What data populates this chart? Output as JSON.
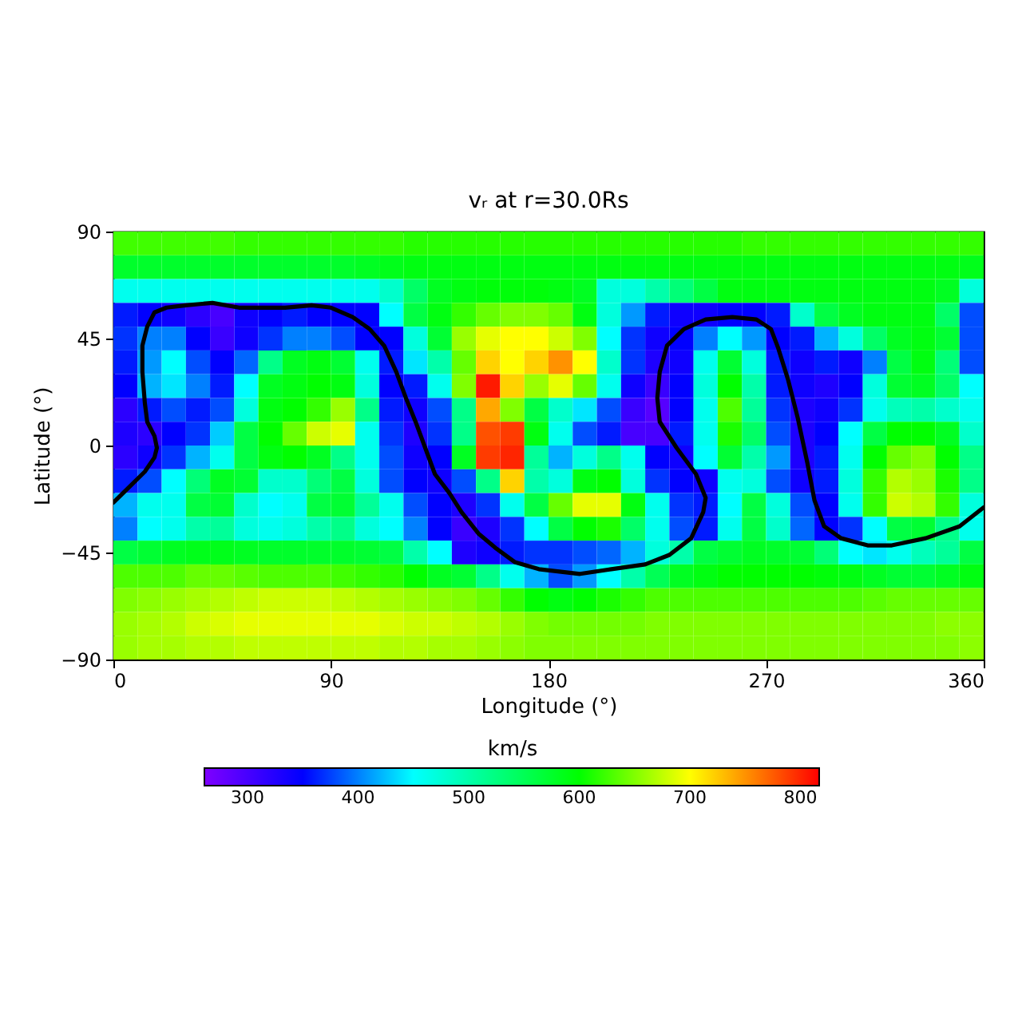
{
  "chart_data": {
    "type": "heatmap",
    "title": "vᵣ at r=30.0Rs",
    "xlabel": "Longitude (°)",
    "ylabel": "Latitude (°)",
    "clabel": "km/s",
    "xlim": [
      0,
      360
    ],
    "xticks": [
      0,
      90,
      180,
      270,
      360
    ],
    "ylim": [
      -90,
      90
    ],
    "yticks": [
      -90,
      -45,
      0,
      45,
      90
    ],
    "clim": [
      261,
      817
    ],
    "cticks": [
      300,
      400,
      500,
      600,
      700,
      800
    ],
    "x": [
      5,
      15,
      25,
      35,
      45,
      55,
      65,
      75,
      85,
      95,
      105,
      115,
      125,
      135,
      145,
      155,
      165,
      175,
      185,
      195,
      205,
      215,
      225,
      235,
      245,
      255,
      265,
      275,
      285,
      295,
      305,
      315,
      325,
      335,
      345,
      355
    ],
    "y": [
      85,
      75,
      65,
      55,
      45,
      35,
      25,
      15,
      5,
      -5,
      -15,
      -25,
      -35,
      -45,
      -55,
      -65,
      -75,
      -85
    ],
    "cells": [
      [
        625,
        625,
        625,
        625,
        625,
        620,
        620,
        620,
        620,
        620,
        620,
        620,
        615,
        615,
        615,
        615,
        615,
        615,
        615,
        615,
        615,
        615,
        615,
        615,
        615,
        615,
        620,
        620,
        620,
        620,
        620,
        620,
        620,
        620,
        620,
        620
      ],
      [
        575,
        575,
        575,
        575,
        575,
        575,
        575,
        575,
        575,
        575,
        580,
        585,
        590,
        590,
        590,
        590,
        590,
        590,
        590,
        590,
        590,
        590,
        590,
        590,
        590,
        590,
        590,
        590,
        590,
        590,
        590,
        590,
        590,
        590,
        590,
        585
      ],
      [
        460,
        460,
        460,
        460,
        460,
        460,
        460,
        460,
        460,
        460,
        460,
        480,
        540,
        580,
        590,
        595,
        595,
        595,
        590,
        580,
        470,
        470,
        500,
        530,
        560,
        590,
        590,
        590,
        590,
        590,
        590,
        590,
        590,
        590,
        580,
        470
      ],
      [
        360,
        350,
        340,
        320,
        300,
        340,
        350,
        360,
        350,
        350,
        350,
        450,
        560,
        590,
        620,
        640,
        650,
        650,
        640,
        590,
        470,
        410,
        360,
        340,
        340,
        350,
        350,
        360,
        480,
        560,
        580,
        590,
        590,
        590,
        540,
        380
      ],
      [
        370,
        400,
        400,
        350,
        310,
        340,
        370,
        400,
        400,
        380,
        350,
        350,
        470,
        570,
        660,
        690,
        700,
        700,
        680,
        650,
        450,
        370,
        340,
        350,
        400,
        450,
        410,
        350,
        360,
        420,
        470,
        540,
        580,
        590,
        570,
        380
      ],
      [
        360,
        410,
        450,
        380,
        350,
        390,
        520,
        580,
        590,
        570,
        460,
        360,
        440,
        500,
        640,
        720,
        700,
        720,
        750,
        700,
        480,
        370,
        330,
        340,
        460,
        570,
        470,
        360,
        340,
        360,
        340,
        400,
        560,
        590,
        530,
        380
      ],
      [
        350,
        420,
        440,
        400,
        360,
        450,
        580,
        590,
        600,
        590,
        470,
        350,
        360,
        460,
        650,
        805,
        720,
        660,
        690,
        640,
        460,
        340,
        310,
        350,
        470,
        600,
        500,
        360,
        340,
        330,
        350,
        470,
        570,
        580,
        540,
        450
      ],
      [
        320,
        360,
        380,
        360,
        380,
        470,
        590,
        600,
        620,
        660,
        520,
        360,
        340,
        380,
        520,
        740,
        650,
        560,
        480,
        440,
        380,
        310,
        290,
        350,
        460,
        630,
        510,
        370,
        330,
        340,
        370,
        460,
        490,
        500,
        480,
        460
      ],
      [
        330,
        320,
        350,
        370,
        430,
        560,
        600,
        640,
        680,
        690,
        460,
        370,
        330,
        370,
        520,
        780,
        790,
        590,
        460,
        380,
        360,
        300,
        300,
        360,
        460,
        610,
        540,
        380,
        330,
        350,
        450,
        560,
        600,
        600,
        580,
        480
      ],
      [
        320,
        340,
        370,
        420,
        460,
        560,
        590,
        600,
        580,
        520,
        460,
        380,
        340,
        350,
        580,
        790,
        800,
        510,
        420,
        470,
        520,
        460,
        350,
        340,
        450,
        570,
        500,
        410,
        330,
        360,
        460,
        600,
        640,
        650,
        600,
        520
      ],
      [
        360,
        380,
        450,
        530,
        580,
        570,
        480,
        480,
        530,
        560,
        470,
        380,
        350,
        340,
        380,
        520,
        720,
        500,
        470,
        590,
        600,
        470,
        370,
        350,
        340,
        460,
        470,
        380,
        340,
        360,
        470,
        620,
        670,
        660,
        610,
        520
      ],
      [
        420,
        460,
        460,
        560,
        570,
        480,
        450,
        460,
        560,
        570,
        510,
        460,
        380,
        350,
        330,
        370,
        460,
        560,
        640,
        690,
        690,
        590,
        460,
        370,
        360,
        450,
        560,
        470,
        380,
        350,
        460,
        620,
        680,
        670,
        620,
        470
      ],
      [
        400,
        450,
        460,
        500,
        510,
        470,
        460,
        470,
        500,
        520,
        470,
        450,
        400,
        350,
        310,
        330,
        370,
        450,
        560,
        600,
        610,
        540,
        460,
        380,
        360,
        460,
        560,
        480,
        390,
        350,
        370,
        450,
        560,
        570,
        520,
        460
      ],
      [
        560,
        570,
        580,
        585,
        585,
        580,
        575,
        575,
        575,
        575,
        570,
        560,
        500,
        450,
        330,
        340,
        360,
        370,
        370,
        380,
        390,
        420,
        470,
        500,
        560,
        570,
        580,
        575,
        570,
        530,
        450,
        440,
        460,
        490,
        510,
        560
      ],
      [
        630,
        630,
        630,
        640,
        640,
        635,
        630,
        630,
        630,
        625,
        620,
        615,
        600,
        580,
        570,
        520,
        460,
        420,
        380,
        410,
        450,
        500,
        550,
        580,
        590,
        600,
        600,
        600,
        600,
        595,
        590,
        580,
        570,
        570,
        580,
        590
      ],
      [
        650,
        655,
        660,
        665,
        670,
        675,
        680,
        680,
        680,
        675,
        670,
        665,
        660,
        655,
        650,
        640,
        620,
        600,
        590,
        600,
        610,
        620,
        630,
        630,
        630,
        630,
        630,
        630,
        630,
        630,
        630,
        635,
        640,
        640,
        640,
        640
      ],
      [
        660,
        665,
        670,
        680,
        685,
        690,
        690,
        690,
        690,
        690,
        690,
        685,
        680,
        680,
        675,
        670,
        660,
        650,
        645,
        645,
        645,
        645,
        650,
        650,
        650,
        650,
        650,
        650,
        650,
        650,
        650,
        650,
        650,
        650,
        655,
        655
      ],
      [
        660,
        665,
        665,
        670,
        670,
        675,
        675,
        675,
        675,
        675,
        675,
        670,
        670,
        665,
        665,
        660,
        655,
        650,
        650,
        650,
        650,
        650,
        650,
        650,
        650,
        650,
        650,
        650,
        650,
        650,
        650,
        650,
        650,
        650,
        650,
        655
      ]
    ],
    "series": [
      {
        "type": "line",
        "color": "#000000",
        "x": [
          0,
          6,
          13,
          17,
          18,
          17,
          14,
          13,
          12,
          12,
          14,
          17,
          22,
          30,
          41,
          52,
          63,
          71,
          82,
          90,
          99,
          106,
          112,
          117,
          121,
          125,
          129,
          133,
          139,
          144,
          151,
          158,
          166,
          176,
          193,
          206,
          220,
          230,
          239,
          244,
          245,
          241,
          233,
          226,
          225,
          226,
          229,
          236,
          245,
          256,
          266,
          272,
          275,
          279,
          283,
          287,
          290,
          294,
          301,
          312,
          322,
          336,
          350,
          360
        ],
        "values": [
          -24,
          -18,
          -11,
          -5,
          -1,
          4,
          10,
          18,
          31,
          42,
          50,
          56,
          58,
          59,
          60,
          58,
          58,
          58,
          59,
          58,
          54,
          49,
          42,
          31,
          20,
          10,
          -1,
          -12,
          -20,
          -28,
          -37,
          -43,
          -49,
          -52,
          -54,
          -52,
          -50,
          -46,
          -39,
          -28,
          -22,
          -12,
          -1,
          10,
          20,
          31,
          42,
          49,
          53,
          54,
          53,
          49,
          41,
          28,
          12,
          -7,
          -23,
          -34,
          -39,
          -42,
          -42,
          -39,
          -34,
          -26
        ]
      }
    ]
  }
}
